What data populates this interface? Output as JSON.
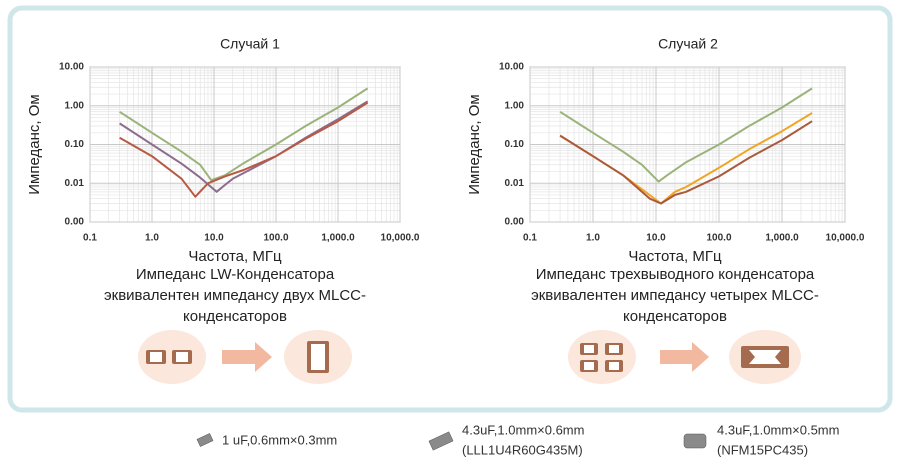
{
  "chart_data": [
    {
      "type": "line",
      "title": "Случай 1",
      "xlabel": "Частота, МГц",
      "ylabel": "Импеданс, Ом",
      "log_x": true,
      "log_y": true,
      "grid": true,
      "minor_grid": true,
      "xlim": [
        0.1,
        10000
      ],
      "ylim": [
        0.001,
        10
      ],
      "xticks": [
        0.1,
        {
          "value": 1,
          "label": "1.0"
        },
        {
          "value": 10,
          "label": "10.0"
        },
        {
          "value": 100,
          "label": "100.0"
        },
        {
          "value": 1000,
          "label": "1,000.0"
        },
        {
          "value": 10000,
          "label": "10,000.0"
        }
      ],
      "yticks": [
        {
          "value": 0.001,
          "label": "0.00"
        },
        {
          "value": 0.01,
          "label": "0.01"
        },
        {
          "value": 0.1,
          "label": "0.10"
        },
        {
          "value": 1,
          "label": "1.00"
        },
        {
          "value": 10,
          "label": "10.00"
        }
      ],
      "series": [
        {
          "color": "#9bb37a",
          "x": [
            0.3,
            1,
            3,
            6,
            9,
            15,
            30,
            100,
            300,
            1000,
            3000
          ],
          "values": [
            0.7,
            0.2,
            0.065,
            0.03,
            0.012,
            0.016,
            0.033,
            0.1,
            0.3,
            0.9,
            2.8
          ]
        },
        {
          "color": "#8c6d8c",
          "x": [
            0.3,
            1,
            3,
            6,
            11,
            15,
            20,
            100,
            300,
            1000,
            3000
          ],
          "values": [
            0.35,
            0.1,
            0.032,
            0.014,
            0.006,
            0.009,
            0.013,
            0.05,
            0.15,
            0.45,
            1.3
          ]
        },
        {
          "color": "#b75a44",
          "x": [
            0.3,
            1,
            3,
            5,
            8,
            15,
            30,
            100,
            300,
            1000,
            3000
          ],
          "values": [
            0.15,
            0.05,
            0.013,
            0.0045,
            0.01,
            0.015,
            0.022,
            0.05,
            0.14,
            0.4,
            1.2
          ]
        }
      ],
      "caption": [
        "Импеданс LW-Конденсатора",
        "эквивалентен импедансу двух MLCC-",
        "конденсаторов"
      ]
    },
    {
      "type": "line",
      "title": "Случай 2",
      "xlabel": "Частота, МГц",
      "ylabel": "Импеданс, Ом",
      "log_x": true,
      "log_y": true,
      "grid": true,
      "minor_grid": true,
      "xlim": [
        0.1,
        10000
      ],
      "ylim": [
        0.001,
        10
      ],
      "xticks": [
        0.1,
        {
          "value": 1,
          "label": "1.0"
        },
        {
          "value": 10,
          "label": "10.0"
        },
        {
          "value": 100,
          "label": "100.0"
        },
        {
          "value": 1000,
          "label": "1,000.0"
        },
        {
          "value": 10000,
          "label": "10,000.0"
        }
      ],
      "yticks": [
        {
          "value": 0.001,
          "label": "0.00"
        },
        {
          "value": 0.01,
          "label": "0.01"
        },
        {
          "value": 0.1,
          "label": "0.10"
        },
        {
          "value": 1,
          "label": "1.00"
        },
        {
          "value": 10,
          "label": "10.00"
        }
      ],
      "series": [
        {
          "color": "#9bb37a",
          "x": [
            0.3,
            1,
            3,
            6,
            11,
            15,
            30,
            100,
            300,
            1000,
            3000
          ],
          "values": [
            0.7,
            0.2,
            0.065,
            0.03,
            0.011,
            0.016,
            0.035,
            0.1,
            0.3,
            0.9,
            2.8
          ]
        },
        {
          "color": "#f0a524",
          "x": [
            0.3,
            1,
            3,
            6,
            12,
            20,
            30,
            100,
            300,
            1000,
            3000
          ],
          "values": [
            0.17,
            0.05,
            0.016,
            0.007,
            0.003,
            0.006,
            0.008,
            0.025,
            0.075,
            0.22,
            0.65
          ]
        },
        {
          "color": "#a95a3c",
          "x": [
            0.3,
            1,
            3,
            8,
            12,
            20,
            30,
            100,
            300,
            1000,
            3000
          ],
          "values": [
            0.17,
            0.05,
            0.016,
            0.004,
            0.003,
            0.005,
            0.006,
            0.015,
            0.045,
            0.13,
            0.4
          ]
        }
      ],
      "caption": [
        "Импеданс трехвыводного конденсатора",
        "эквивалентен импедансу четырех MLCC-",
        "конденсаторов"
      ]
    }
  ],
  "legend": [
    {
      "lines": [
        "1 uF,0.6mm×0.3mm"
      ]
    },
    {
      "lines": [
        "4.3uF,1.0mm×0.6mm",
        "(LLL1U4R60G435M)"
      ]
    },
    {
      "lines": [
        "4.3uF,1.0mm×0.5mm",
        "(NFM15PC435)"
      ]
    }
  ]
}
